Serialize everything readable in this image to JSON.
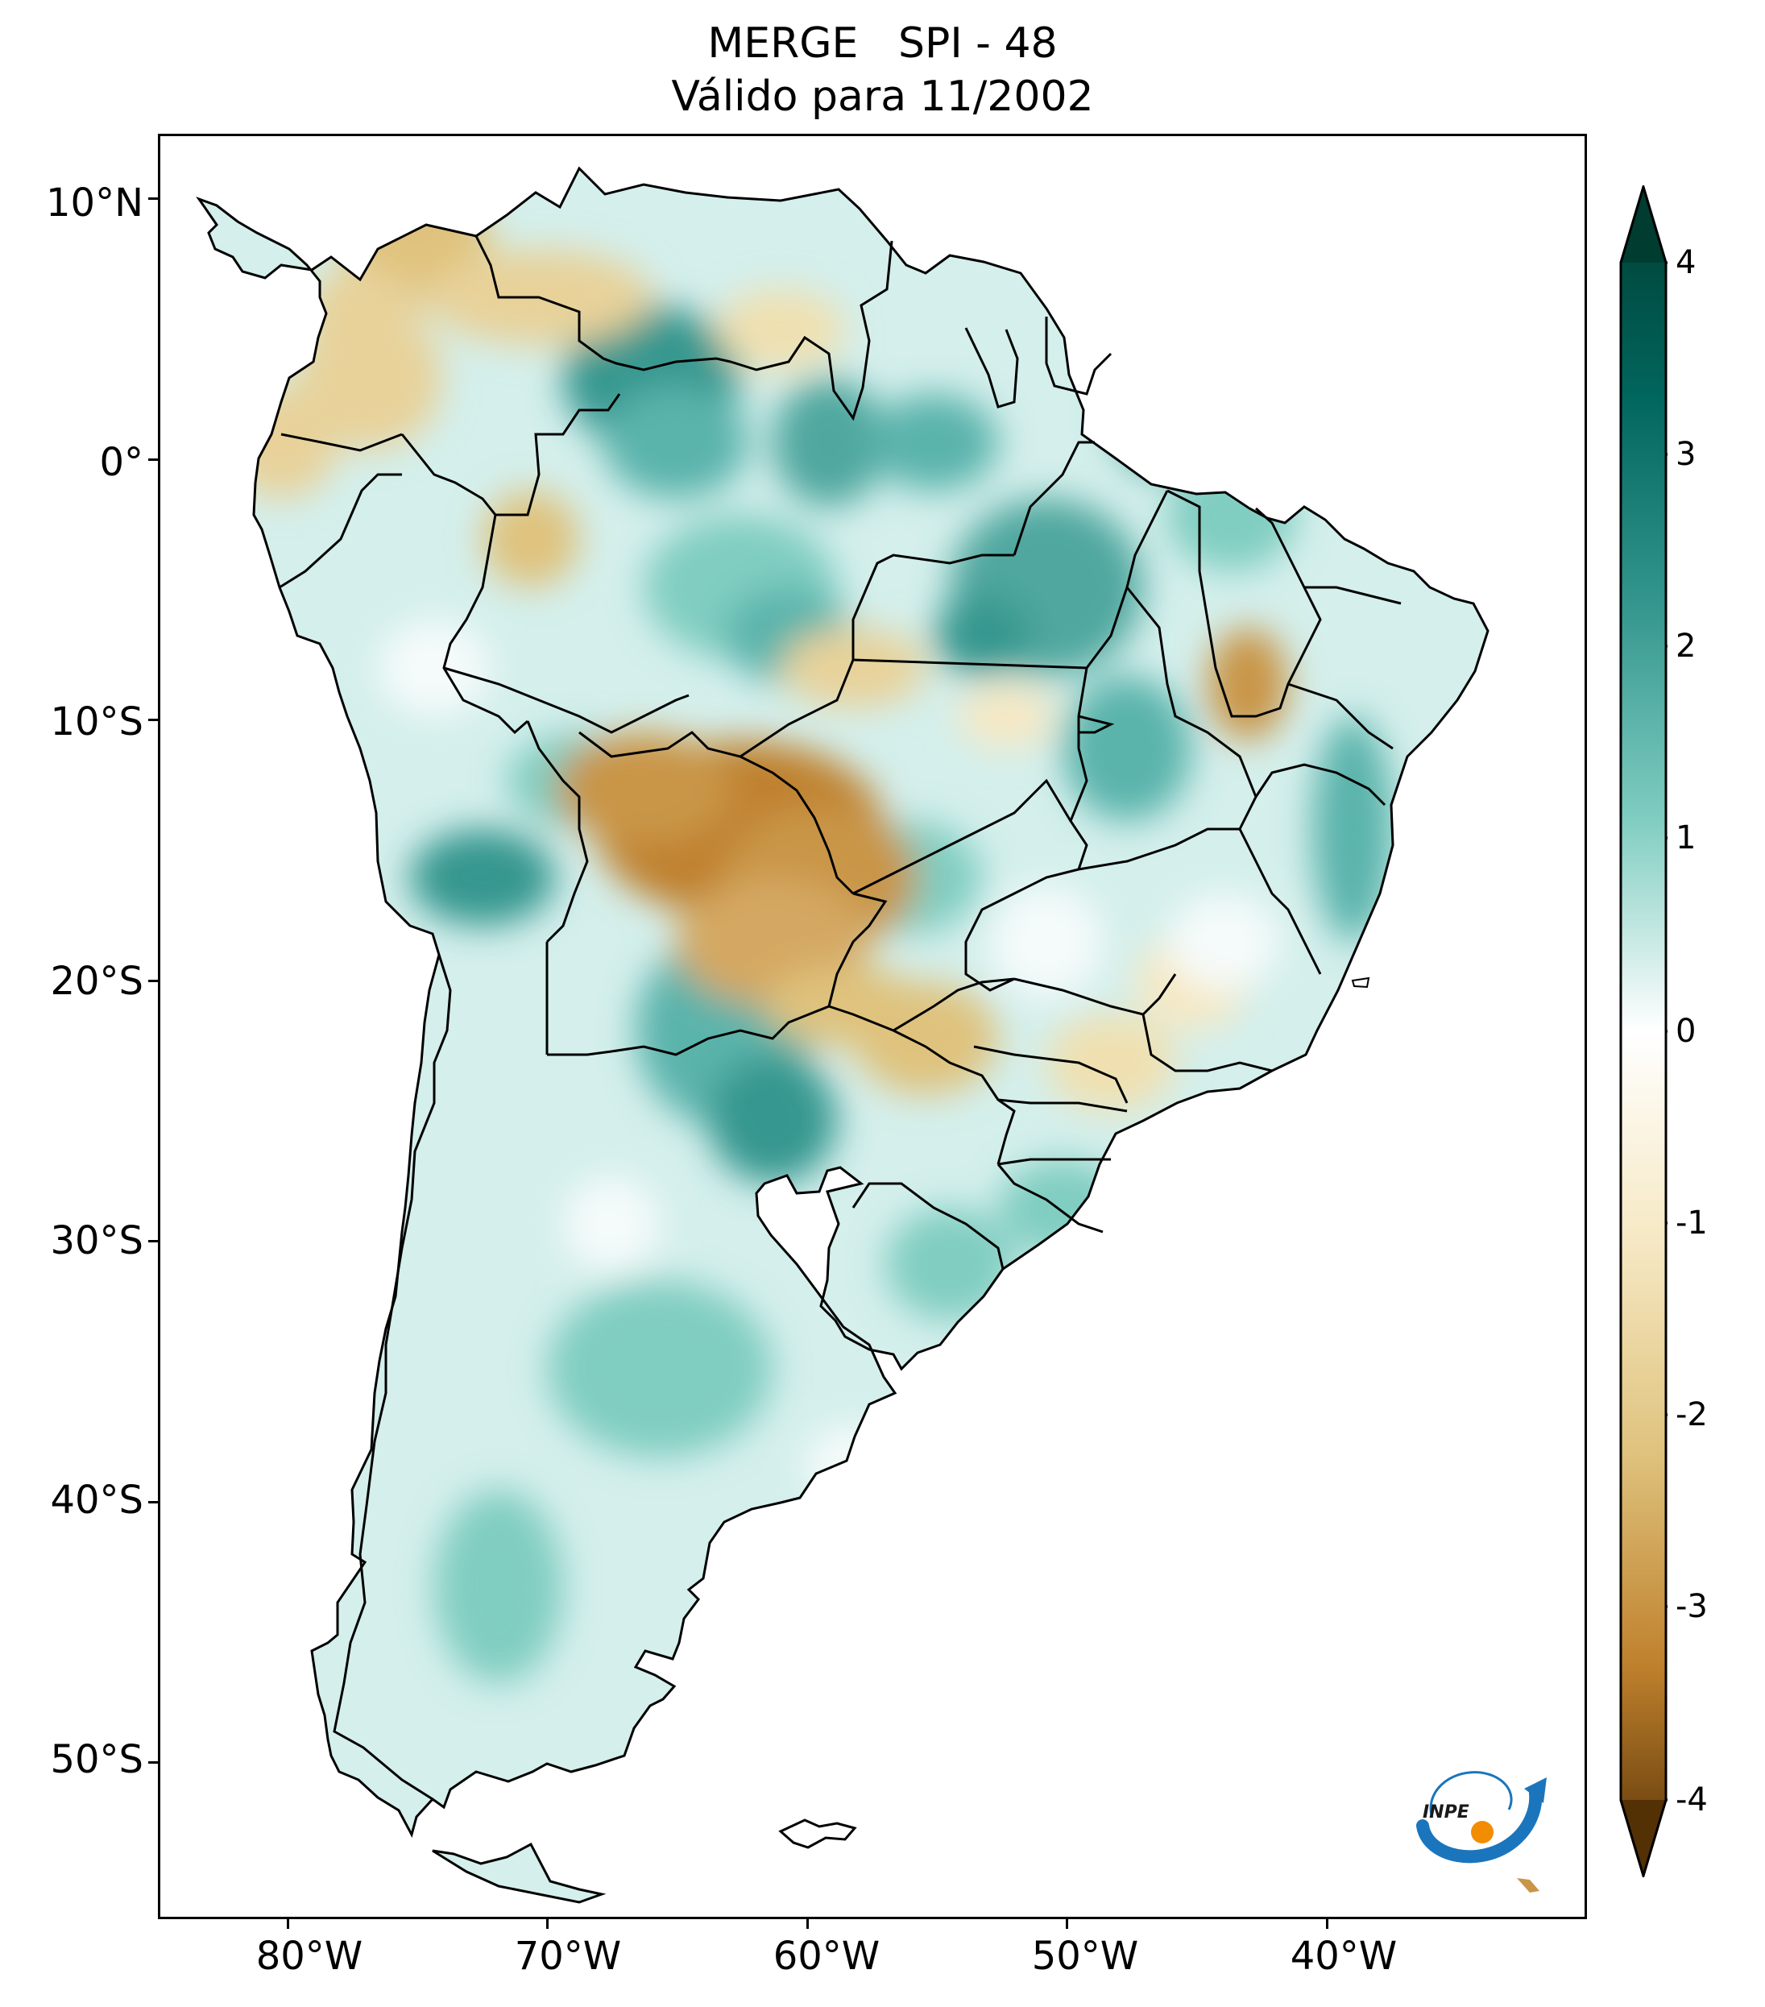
{
  "title": {
    "line1": "MERGE   SPI - 48",
    "line2": "Válido para 11/2002"
  },
  "axes": {
    "latitude_labels": [
      "10°N",
      "0°",
      "10°S",
      "20°S",
      "30°S",
      "40°S",
      "50°S"
    ],
    "latitude_values": [
      10,
      0,
      -10,
      -20,
      -30,
      -40,
      -50
    ],
    "longitude_labels": [
      "80°W",
      "70°W",
      "60°W",
      "50°W",
      "40°W"
    ],
    "longitude_values": [
      -80,
      -70,
      -60,
      -50,
      -40
    ],
    "lon_range": [
      -85,
      -30
    ],
    "lat_range": [
      -56,
      12.5
    ]
  },
  "colorbar": {
    "tick_labels": [
      "4",
      "3",
      "2",
      "1",
      "0",
      "-1",
      "-2",
      "-3",
      "-4"
    ],
    "tick_values": [
      4,
      3,
      2,
      1,
      0,
      -1,
      -2,
      -3,
      -4
    ],
    "range": [
      -4,
      4
    ],
    "extend": "both",
    "colormap": "BrBG",
    "colors": {
      "very_dry": "#543005",
      "dry": "#bf812d",
      "slightly_dry": "#f6e8c3",
      "neutral": "#ffffff",
      "slightly_wet": "#c7eae5",
      "wet": "#35978f",
      "very_wet": "#003c30"
    }
  },
  "logo": {
    "text": "INPE",
    "colors": {
      "arc": "#1a75bc",
      "dot": "#f28c00"
    }
  }
}
